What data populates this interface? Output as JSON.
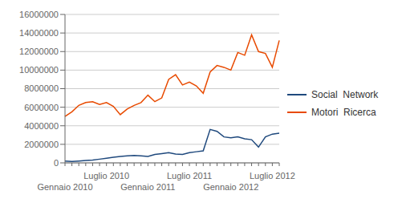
{
  "chart_data": {
    "type": "line",
    "categories": [
      "Gennaio 2010",
      null,
      null,
      null,
      null,
      null,
      "Luglio 2010",
      null,
      null,
      null,
      null,
      null,
      "Gennaio 2011",
      null,
      null,
      null,
      null,
      null,
      "Luglio 2011",
      null,
      null,
      null,
      null,
      null,
      "Gennaio 2012",
      null,
      null,
      null,
      null,
      null,
      "Luglio 2012",
      null
    ],
    "series": [
      {
        "name": "Motori  Ricerca",
        "color": "#e84a00",
        "values": [
          5000000,
          5500000,
          6200000,
          6500000,
          6600000,
          6300000,
          6500000,
          6100000,
          5200000,
          5800000,
          6200000,
          6500000,
          7300000,
          6600000,
          7000000,
          9000000,
          9500000,
          8400000,
          8700000,
          8300000,
          7500000,
          9800000,
          10500000,
          10300000,
          10000000,
          11900000,
          11600000,
          13800000,
          12000000,
          11800000,
          10300000,
          13200000
        ]
      },
      {
        "name": "Social  Network",
        "color": "#1f497d",
        "values": [
          200000,
          150000,
          200000,
          250000,
          300000,
          400000,
          500000,
          600000,
          700000,
          750000,
          800000,
          750000,
          700000,
          900000,
          1000000,
          1100000,
          950000,
          900000,
          1100000,
          1200000,
          1300000,
          3600000,
          3400000,
          2800000,
          2700000,
          2800000,
          2600000,
          2500000,
          1700000,
          2800000,
          3100000,
          3200000
        ]
      }
    ],
    "ylim": [
      0,
      16000000
    ],
    "yticks": [
      0,
      2000000,
      4000000,
      6000000,
      8000000,
      10000000,
      12000000,
      14000000,
      16000000
    ],
    "grid": true,
    "legend": "right"
  }
}
